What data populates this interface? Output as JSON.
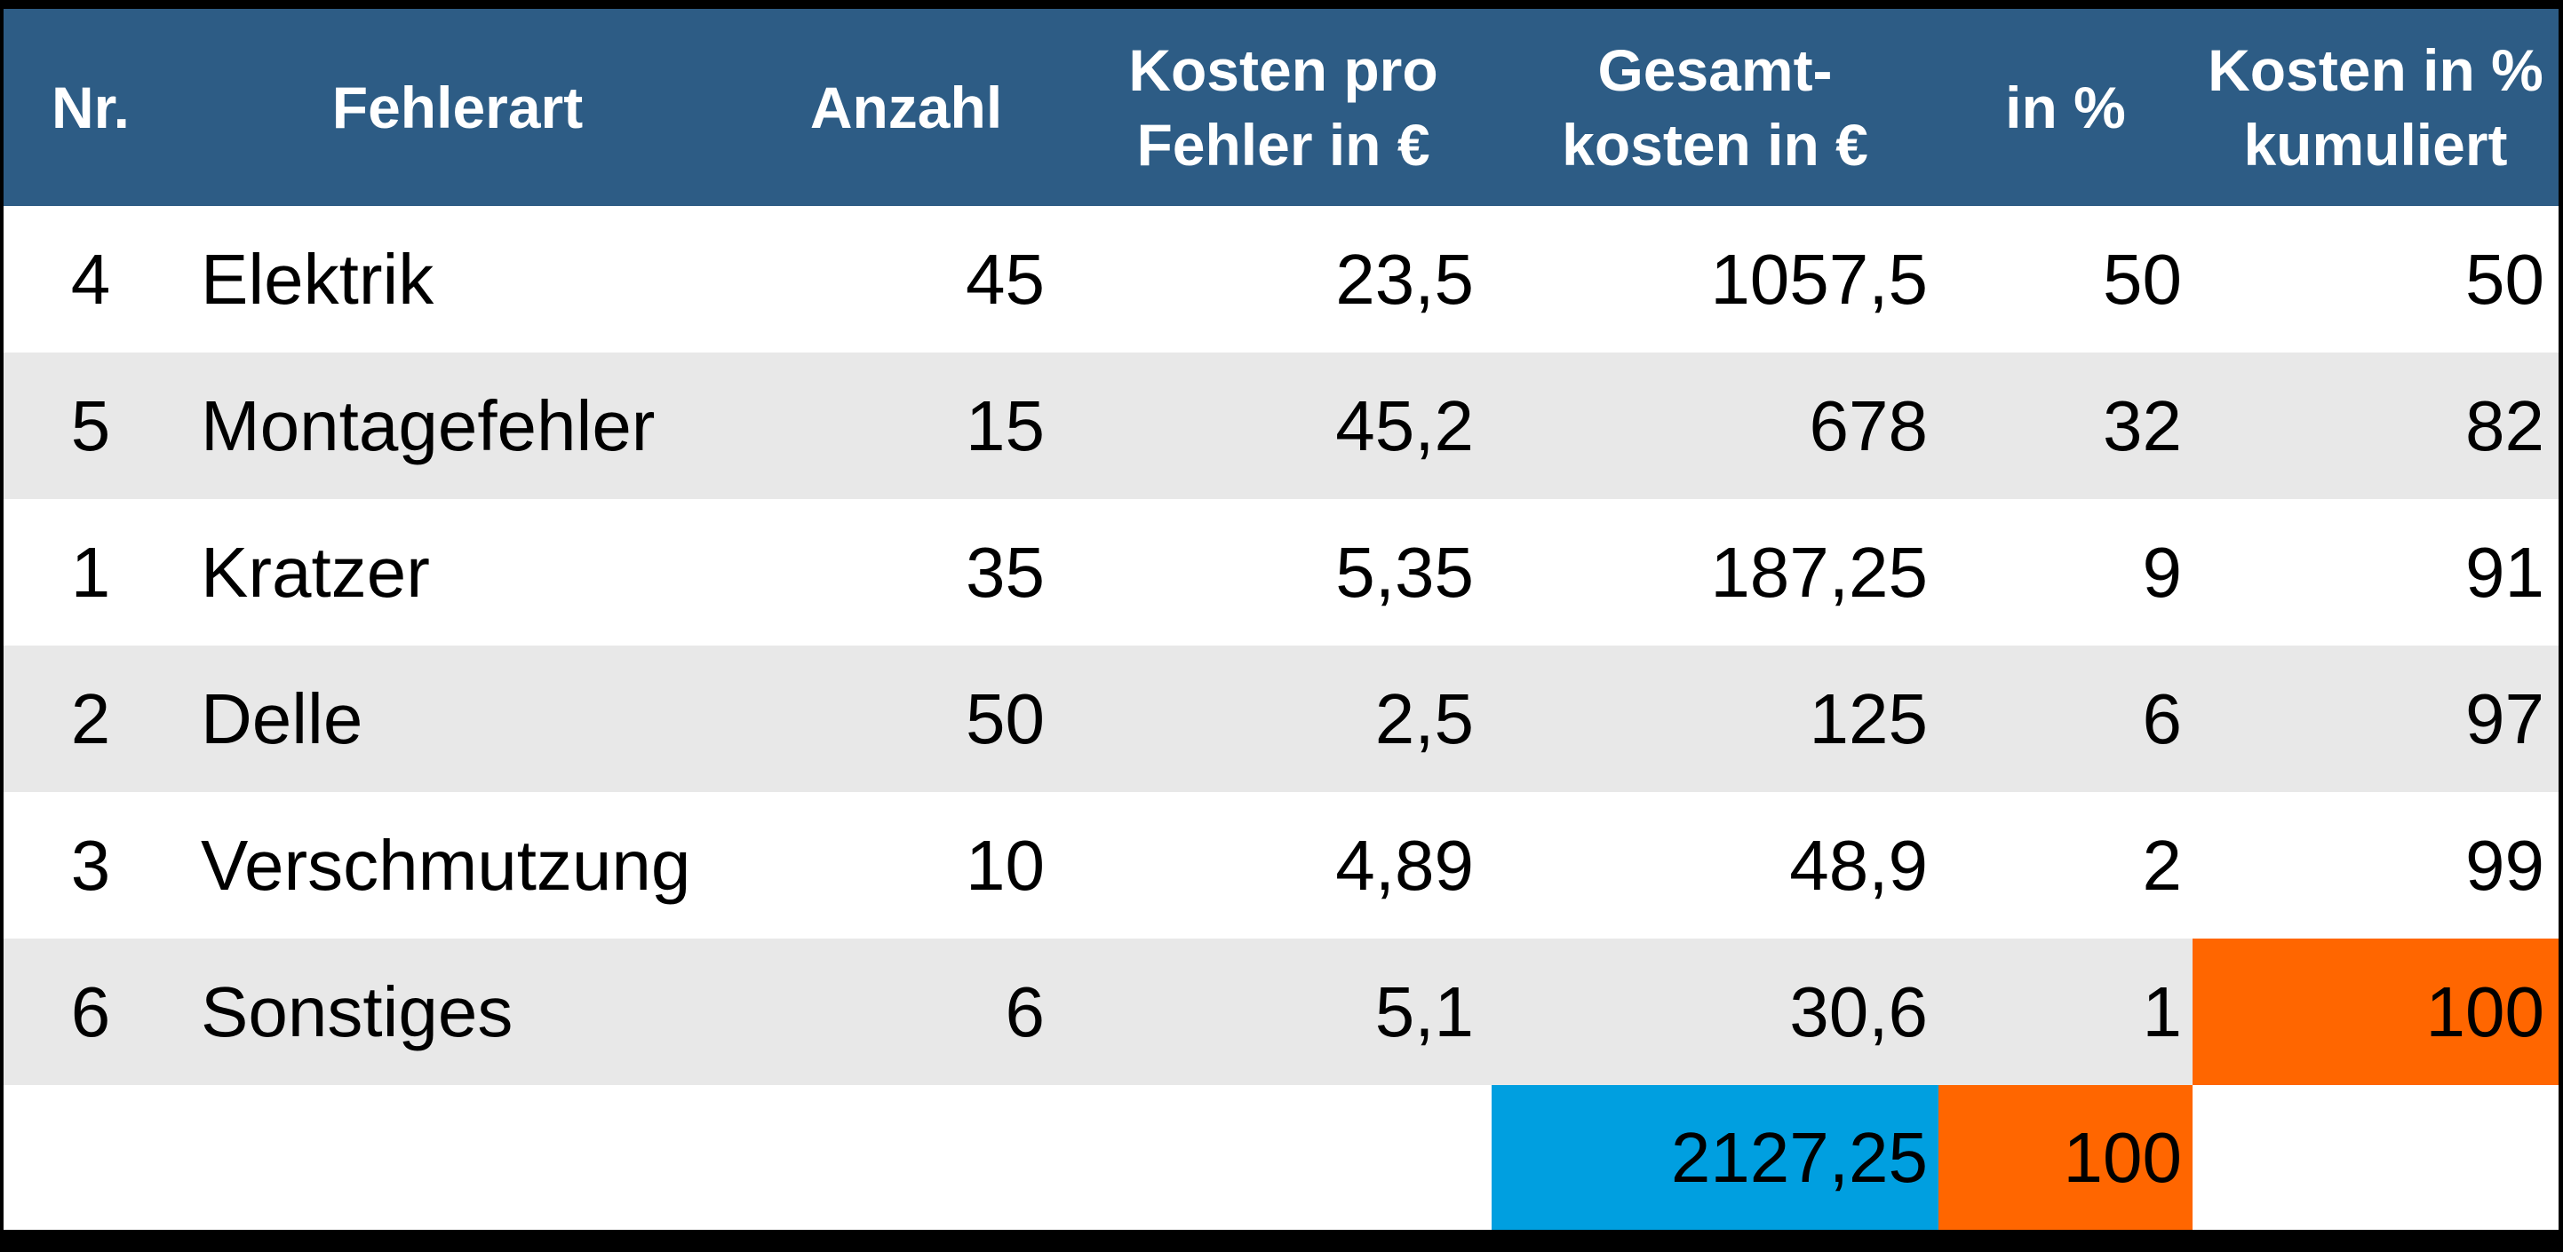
{
  "colors": {
    "page-bg": "#000000",
    "header-bg": "#2d5c85",
    "header-text": "#ffffff",
    "row-bg": "#ffffff",
    "row-alt-bg": "#e8e8e8",
    "body-text": "#000000",
    "accent-orange": "#ff6600",
    "accent-blue": "#009fe0"
  },
  "table": {
    "columns": [
      {
        "label": "Nr."
      },
      {
        "label": "Fehlerart"
      },
      {
        "label": "Anzahl"
      },
      {
        "label": "Kosten pro\nFehler in €"
      },
      {
        "label": "Gesamt-\nkosten in €"
      },
      {
        "label": "in %"
      },
      {
        "label": "Kosten in %\nkumuliert"
      }
    ],
    "rows": [
      {
        "cells": [
          "4",
          "Elektrik",
          "45",
          "23,5",
          "1057,5",
          "50",
          "50"
        ]
      },
      {
        "cells": [
          "5",
          "Montagefehler",
          "15",
          "45,2",
          "678",
          "32",
          "82"
        ]
      },
      {
        "cells": [
          "1",
          "Kratzer",
          "35",
          "5,35",
          "187,25",
          "9",
          "91"
        ]
      },
      {
        "cells": [
          "2",
          "Delle",
          "50",
          "2,5",
          "125",
          "6",
          "97"
        ]
      },
      {
        "cells": [
          "3",
          "Verschmutzung",
          "10",
          "4,89",
          "48,9",
          "2",
          "99"
        ]
      },
      {
        "cells": [
          "6",
          "Sonstiges",
          "6",
          "5,1",
          "30,6",
          "1",
          "100"
        ]
      }
    ],
    "footer": {
      "total_cost": "2127,25",
      "total_percent": "100"
    }
  },
  "chart_data": {
    "type": "table",
    "title": "",
    "columns": [
      "Nr.",
      "Fehlerart",
      "Anzahl",
      "Kosten pro Fehler in €",
      "Gesamt-kosten in €",
      "in %",
      "Kosten in % kumuliert"
    ],
    "rows": [
      [
        4,
        "Elektrik",
        45,
        23.5,
        1057.5,
        50,
        50
      ],
      [
        5,
        "Montagefehler",
        15,
        45.2,
        678,
        32,
        82
      ],
      [
        1,
        "Kratzer",
        35,
        5.35,
        187.25,
        9,
        91
      ],
      [
        2,
        "Delle",
        50,
        2.5,
        125,
        6,
        97
      ],
      [
        3,
        "Verschmutzung",
        10,
        4.89,
        48.9,
        2,
        99
      ],
      [
        6,
        "Sonstiges",
        6,
        5.1,
        30.6,
        1,
        100
      ]
    ],
    "totals": {
      "gesamtkosten_eur": 2127.25,
      "prozent": 100
    },
    "layout_hints": "zebra striped rows; decimal comma; highlighted cells: last cumulative value 100 orange, total cost blue, total percent orange"
  }
}
